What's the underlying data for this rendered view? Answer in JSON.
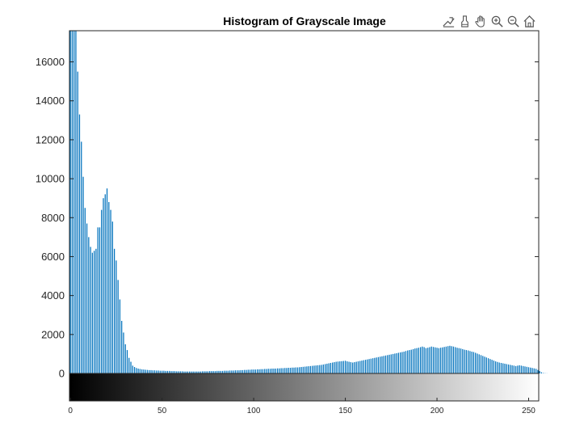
{
  "toolbar": {
    "icons": [
      "data-tips-icon",
      "brush-icon",
      "pan-hand-icon",
      "zoom-in-icon",
      "zoom-out-icon",
      "home-restore-icon"
    ]
  },
  "colors": {
    "bar": "#0072BD",
    "axis": "#262626",
    "background": "#ffffff"
  },
  "chart_data": {
    "type": "bar",
    "title": "Histogram of Grayscale Image",
    "xlabel": "",
    "ylabel": "",
    "xlim": [
      0,
      255
    ],
    "ylim": [
      -1300,
      17600
    ],
    "yticks": [
      0,
      2000,
      4000,
      6000,
      8000,
      10000,
      12000,
      14000,
      16000
    ],
    "ytick_labels": [
      "0",
      "2000",
      "4000",
      "6000",
      "8000",
      "10000",
      "12000",
      "14000",
      "16000"
    ],
    "xticks": [
      0,
      50,
      100,
      150,
      200,
      250
    ],
    "xtick_labels": [
      "0",
      "50",
      "100",
      "150",
      "200",
      "250"
    ],
    "colorbar": "grayscale 0-255 under the axis",
    "grid": false,
    "legend": "none",
    "values": [
      17600,
      17600,
      17600,
      17600,
      15500,
      13300,
      11900,
      10100,
      8500,
      7700,
      7000,
      6500,
      6200,
      6300,
      6400,
      7500,
      7500,
      8400,
      9000,
      9200,
      9500,
      8800,
      8400,
      7800,
      6400,
      5800,
      4800,
      3800,
      2700,
      2100,
      1500,
      1200,
      800,
      600,
      400,
      330,
      280,
      250,
      230,
      210,
      200,
      190,
      180,
      170,
      170,
      160,
      160,
      150,
      150,
      140,
      140,
      140,
      130,
      130,
      130,
      120,
      120,
      120,
      110,
      110,
      110,
      110,
      100,
      100,
      100,
      100,
      100,
      100,
      100,
      100,
      100,
      100,
      110,
      110,
      110,
      110,
      120,
      120,
      120,
      120,
      130,
      130,
      130,
      130,
      140,
      140,
      140,
      150,
      150,
      150,
      160,
      160,
      160,
      170,
      170,
      180,
      180,
      190,
      190,
      200,
      200,
      200,
      210,
      210,
      220,
      220,
      230,
      230,
      240,
      240,
      250,
      250,
      250,
      260,
      260,
      270,
      270,
      280,
      280,
      290,
      290,
      300,
      300,
      310,
      310,
      320,
      330,
      340,
      350,
      360,
      370,
      380,
      390,
      400,
      410,
      420,
      430,
      440,
      460,
      480,
      500,
      520,
      540,
      560,
      580,
      600,
      610,
      620,
      630,
      640,
      650,
      620,
      600,
      580,
      560,
      580,
      600,
      620,
      640,
      660,
      680,
      700,
      720,
      740,
      760,
      780,
      800,
      820,
      840,
      860,
      880,
      900,
      920,
      940,
      960,
      980,
      1000,
      1020,
      1040,
      1060,
      1080,
      1100,
      1120,
      1150,
      1180,
      1200,
      1220,
      1250,
      1280,
      1300,
      1320,
      1350,
      1380,
      1350,
      1300,
      1320,
      1350,
      1380,
      1360,
      1340,
      1320,
      1300,
      1320,
      1340,
      1360,
      1380,
      1400,
      1420,
      1400,
      1380,
      1350,
      1320,
      1300,
      1280,
      1250,
      1220,
      1200,
      1180,
      1150,
      1120,
      1100,
      1060,
      1020,
      980,
      940,
      900,
      860,
      820,
      780,
      740,
      700,
      660,
      620,
      590,
      560,
      540,
      520,
      500,
      480,
      460,
      440,
      420,
      400,
      380,
      400,
      420,
      400,
      380,
      360,
      340,
      320,
      300,
      280,
      260,
      240,
      180,
      120,
      60,
      20,
      10,
      5
    ]
  }
}
